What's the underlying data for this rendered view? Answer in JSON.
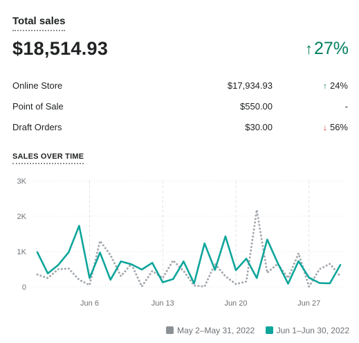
{
  "card": {
    "title": "Total sales",
    "total_value": "$18,514.93",
    "total_change": "27%",
    "total_change_direction": "up"
  },
  "breakdown": [
    {
      "name": "Online Store",
      "value": "$17,934.93",
      "change": "24%",
      "direction": "up"
    },
    {
      "name": "Point of Sale",
      "value": "$550.00",
      "change": "-",
      "direction": "none"
    },
    {
      "name": "Draft Orders",
      "value": "$30.00",
      "change": "56%",
      "direction": "down"
    }
  ],
  "section_title": "SALES OVER TIME",
  "colors": {
    "positive": "#007f5f",
    "negative": "#d72c0d",
    "current_series": "#0ea59b",
    "previous_series": "#a4a8ae"
  },
  "chart_data": {
    "type": "line",
    "title": "",
    "xlabel": "",
    "ylabel": "",
    "ylim": [
      0,
      3000
    ],
    "y_ticks": [
      "0",
      "1K",
      "2K",
      "3K"
    ],
    "x_ticks": [
      {
        "label": "Jun 6",
        "day": 6
      },
      {
        "label": "Jun 13",
        "day": 13
      },
      {
        "label": "Jun 20",
        "day": 20
      },
      {
        "label": "Jun 27",
        "day": 27
      }
    ],
    "x": [
      1,
      2,
      3,
      4,
      5,
      6,
      7,
      8,
      9,
      10,
      11,
      12,
      13,
      14,
      15,
      16,
      17,
      18,
      19,
      20,
      21,
      22,
      23,
      24,
      25,
      26,
      27,
      28,
      29,
      30
    ],
    "grid": "horizontal dotted, vertical dashed at x ticks",
    "legend_position": "bottom-right",
    "series": [
      {
        "name": "May 2–May 31, 2022",
        "style": "dotted",
        "color": "#a4a8ae",
        "values": [
          350,
          250,
          500,
          520,
          200,
          50,
          1300,
          900,
          300,
          650,
          10,
          450,
          250,
          750,
          450,
          40,
          10,
          650,
          300,
          80,
          150,
          2180,
          400,
          650,
          250,
          950,
          10,
          500,
          650,
          300
        ]
      },
      {
        "name": "Jun 1–Jun 30, 2022",
        "style": "solid",
        "color": "#0ea59b",
        "values": [
          980,
          380,
          620,
          980,
          1730,
          250,
          970,
          200,
          720,
          640,
          490,
          680,
          130,
          220,
          720,
          100,
          1230,
          480,
          1430,
          470,
          800,
          250,
          1340,
          680,
          90,
          730,
          260,
          110,
          100,
          620
        ]
      }
    ]
  }
}
